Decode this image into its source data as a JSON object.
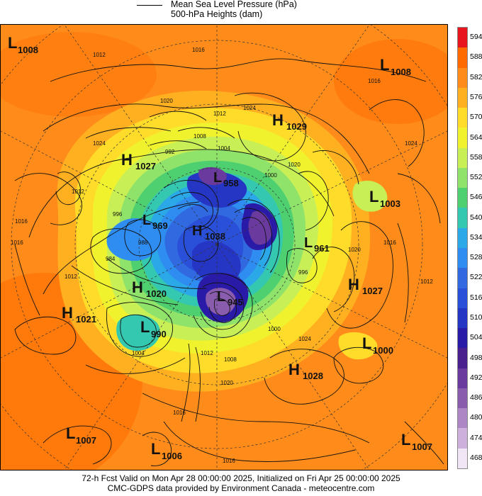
{
  "legend": {
    "line1": "Mean Sea Level Pressure (hPa)",
    "line2": "500-hPa Heights (dam)"
  },
  "colorbar": {
    "levels": [
      "594",
      "588",
      "582",
      "576",
      "570",
      "564",
      "558",
      "552",
      "546",
      "540",
      "534",
      "528",
      "522",
      "516",
      "510",
      "504",
      "498",
      "492",
      "486",
      "480",
      "474",
      "468"
    ],
    "colors": [
      "#e8141e",
      "#ff6a00",
      "#ff8c1a",
      "#ffb020",
      "#ffdc2a",
      "#f0f22e",
      "#c8ef55",
      "#8fe26a",
      "#4fd070",
      "#35c8b0",
      "#2aa8e8",
      "#2f8cf0",
      "#3069e0",
      "#2a4fd8",
      "#2636c4",
      "#2a1aa8",
      "#4a1f8e",
      "#6a3a9e",
      "#8a5cae",
      "#ad86c6",
      "#cdb0dc",
      "#f0e6f6"
    ]
  },
  "centers": [
    {
      "type": "L",
      "value": "1008"
    },
    {
      "type": "L",
      "value": "1008"
    },
    {
      "type": "H",
      "value": "1029"
    },
    {
      "type": "H",
      "value": "1027"
    },
    {
      "type": "L",
      "value": "958"
    },
    {
      "type": "L",
      "value": "1003"
    },
    {
      "type": "L",
      "value": "969"
    },
    {
      "type": "H",
      "value": "1038"
    },
    {
      "type": "L",
      "value": "961"
    },
    {
      "type": "H",
      "value": "1020"
    },
    {
      "type": "H",
      "value": "1027"
    },
    {
      "type": "H",
      "value": "1021"
    },
    {
      "type": "L",
      "value": "945"
    },
    {
      "type": "L",
      "value": "990"
    },
    {
      "type": "L",
      "value": "1000"
    },
    {
      "type": "H",
      "value": "1028"
    },
    {
      "type": "L",
      "value": "1007"
    },
    {
      "type": "L",
      "value": "1006"
    },
    {
      "type": "L",
      "value": "1007"
    }
  ],
  "isobar_labels": [
    "1012",
    "1016",
    "1020",
    "1024",
    "1012",
    "1008",
    "1004",
    "1000",
    "996",
    "992",
    "988",
    "984",
    "1016",
    "1024",
    "1012",
    "1016",
    "1020",
    "1024",
    "1012",
    "1016",
    "1020",
    "1008",
    "1004",
    "1000",
    "996",
    "1024",
    "1012",
    "1016",
    "1020",
    "1012",
    "1016",
    "1016"
  ],
  "footer": {
    "line1": "72-h Fcst Valid on Mon Apr 28 00:00:00 2025, Initialized on Fri Apr 25 00:00:00 2025",
    "line2": "CMC-GDPS data provided by Environment Canada - meteocentre.com"
  }
}
